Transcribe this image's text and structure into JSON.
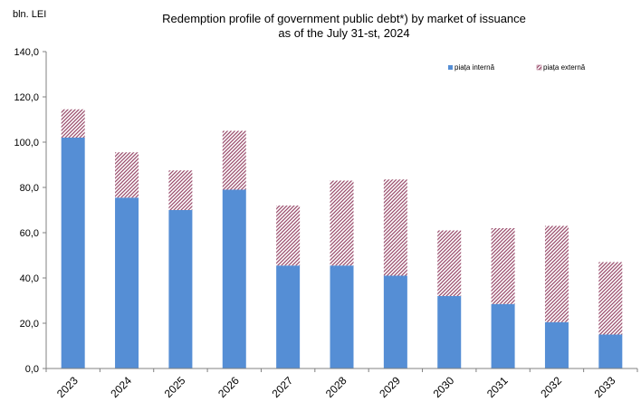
{
  "chart_data": {
    "type": "bar",
    "stacked": true,
    "unit_label": "bln. LEI",
    "title_line1": "Redemption profile of government public debt*) by market of issuance",
    "title_line2": "as of the July 31-st, 2024",
    "categories": [
      "2023",
      "2024",
      "2025",
      "2026",
      "2027",
      "2028",
      "2029",
      "2030",
      "2031",
      "2032",
      "2033"
    ],
    "series": [
      {
        "name": "piața internă",
        "color": "#558ed5",
        "pattern": "solid",
        "values": [
          102.0,
          75.5,
          70.0,
          79.0,
          45.5,
          45.5,
          41.0,
          32.0,
          28.5,
          20.5,
          15.0
        ]
      },
      {
        "name": "piața externă",
        "color": "#9b4f6e",
        "pattern": "hatched",
        "values": [
          12.5,
          20.0,
          17.5,
          26.0,
          26.5,
          37.5,
          42.5,
          29.0,
          33.5,
          42.5,
          32.0
        ]
      }
    ],
    "ylim": [
      0,
      140
    ],
    "yticks": [
      "0,0",
      "20,0",
      "40,0",
      "60,0",
      "80,0",
      "100,0",
      "120,0",
      "140,0"
    ],
    "legend_position": "top-right",
    "grid": false
  }
}
